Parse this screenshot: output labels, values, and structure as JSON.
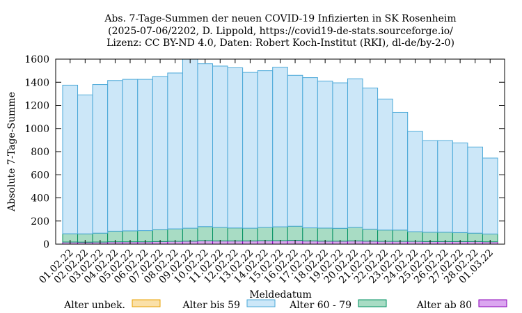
{
  "chart_data": {
    "type": "bar",
    "stacked": true,
    "title_lines": [
      "Abs. 7-Tage-Summen der neuen COVID-19 Infizierten in SK Rosenheim",
      "(2025-07-06/2202, D. Lippold, https://covid19-de-stats.sourceforge.io/",
      "Lizenz: CC BY-ND 4.0, Daten: Robert Koch-Institut (RKI), dl-de/by-2-0)"
    ],
    "xlabel": "Meldedatum",
    "ylabel": "Absolute 7-Tage-Summe",
    "ylim": [
      0,
      1600
    ],
    "yticks": [
      0,
      200,
      400,
      600,
      800,
      1000,
      1200,
      1400,
      1600
    ],
    "categories": [
      "01.02.22",
      "02.02.22",
      "03.02.22",
      "04.02.22",
      "05.02.22",
      "06.02.22",
      "07.02.22",
      "08.02.22",
      "09.02.22",
      "10.02.22",
      "11.02.22",
      "12.02.22",
      "13.02.22",
      "14.02.22",
      "15.02.22",
      "16.02.22",
      "17.02.22",
      "18.02.22",
      "19.02.22",
      "20.02.22",
      "21.02.22",
      "22.02.22",
      "23.02.22",
      "24.02.22",
      "25.02.22",
      "26.02.22",
      "27.02.22",
      "28.02.22",
      "01.03.22"
    ],
    "series": [
      {
        "name": "Alter ab 80",
        "color": "#dba6f0",
        "stroke": "#8b00b8",
        "values": [
          18,
          17,
          18,
          20,
          20,
          20,
          22,
          24,
          26,
          30,
          28,
          28,
          28,
          30,
          30,
          32,
          28,
          26,
          26,
          28,
          26,
          24,
          24,
          24,
          22,
          22,
          22,
          22,
          20
        ]
      },
      {
        "name": "Alter 60 - 79",
        "color": "#a8dcc4",
        "stroke": "#009060",
        "values": [
          72,
          72,
          77,
          92,
          95,
          97,
          105,
          108,
          112,
          122,
          117,
          112,
          110,
          115,
          120,
          123,
          113,
          113,
          111,
          117,
          104,
          98,
          98,
          84,
          81,
          81,
          78,
          73,
          68
        ]
      },
      {
        "name": "Alter bis 59",
        "color": "#cce7f8",
        "stroke": "#4aa8d8",
        "values": [
          1285,
          1201,
          1285,
          1303,
          1310,
          1308,
          1323,
          1348,
          1462,
          1408,
          1395,
          1385,
          1347,
          1355,
          1380,
          1305,
          1299,
          1271,
          1258,
          1285,
          1220,
          1133,
          1018,
          867,
          792,
          792,
          775,
          745,
          657
        ]
      },
      {
        "name": "Alter unbek.",
        "color": "#fae0a8",
        "stroke": "#e8a000",
        "values": [
          0,
          0,
          0,
          0,
          0,
          0,
          0,
          0,
          0,
          0,
          0,
          0,
          0,
          0,
          0,
          0,
          0,
          0,
          0,
          0,
          0,
          0,
          0,
          0,
          0,
          0,
          0,
          0,
          0
        ]
      }
    ],
    "legend": {
      "placement": "bottom",
      "entries": [
        "Alter unbek.",
        "Alter bis 59",
        "Alter 60 - 79",
        "Alter ab 80"
      ]
    },
    "grid": false
  }
}
